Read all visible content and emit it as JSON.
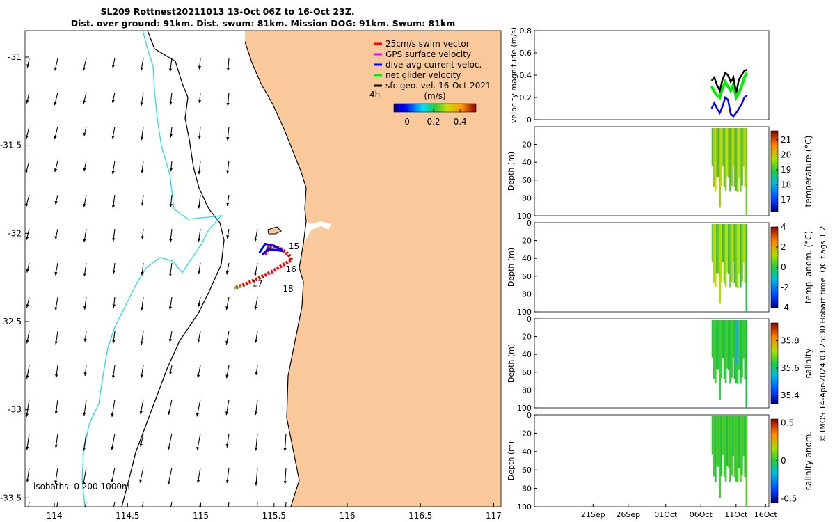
{
  "title": {
    "line1": "SL209 Rottnest20211013 13-Oct 06Z to 16-Oct 23Z.",
    "line2": "Dist. over ground: 91km. Dist. swum: 81km. Mission DOG: 91km. Swum: 81km"
  },
  "colors": {
    "land": "#f9c89b",
    "isobath_shallow": "#000000",
    "isobath_deep": "#22dddd",
    "swim_vector": "#ff0000",
    "gps_surface_velocity": "#ff00ff",
    "dive_avg_current": "#0000ff",
    "net_glider_velocity": "#00ee00",
    "sfc_geo_vel": "#000000"
  },
  "map": {
    "xticks": [
      "114",
      "114.5",
      "115",
      "115.5",
      "116",
      "116.5",
      "117"
    ],
    "yticks": [
      "-31",
      "-31.5",
      "-32",
      "-32.5",
      "-33",
      "-33.5"
    ],
    "xlim": [
      113.8,
      117.05
    ],
    "ylim": [
      -33.55,
      -30.85
    ],
    "isobath_label": "isobaths: 0   200  1000m",
    "vector_timestamp": "4h",
    "day_labels": [
      {
        "text": "15",
        "lon": 115.6,
        "lat": -32.09
      },
      {
        "text": "16",
        "lon": 115.58,
        "lat": -32.22
      },
      {
        "text": "17",
        "lon": 115.35,
        "lat": -32.3
      },
      {
        "text": "18",
        "lon": 115.56,
        "lat": -32.33
      }
    ],
    "legend": [
      {
        "label": "25cm/s swim vector",
        "color_key": "swim_vector"
      },
      {
        "label": "GPS surface velocity",
        "color_key": "gps_surface_velocity"
      },
      {
        "label": "dive-avg current veloc.",
        "color_key": "dive_avg_current"
      },
      {
        "label": "net glider velocity",
        "color_key": "net_glider_velocity"
      },
      {
        "label": "sfc geo. vel. 16-Oct-2021",
        "color_key": "sfc_geo_vel"
      }
    ],
    "colorbar": {
      "label": "(m/s)",
      "ticks": [
        "0",
        "0.2",
        "0.4"
      ],
      "range": [
        -0.1,
        0.52
      ]
    }
  },
  "chart_data": [
    {
      "type": "line",
      "panel": "velocity",
      "ylabel": "velocity magnitude (m/s)",
      "ylim": [
        0,
        0.8
      ],
      "yticks": [
        "0",
        "0.2",
        "0.4",
        "0.6",
        "0.8"
      ],
      "x_days": [
        13.25,
        13.5,
        13.75,
        14.0,
        14.25,
        14.5,
        14.75,
        15.0,
        15.25,
        15.5,
        15.75,
        16.0,
        16.25,
        16.5
      ],
      "series": [
        {
          "color_key": "sfc_geo_vel",
          "values": [
            0.35,
            0.38,
            0.31,
            0.26,
            0.36,
            0.42,
            0.4,
            0.34,
            0.38,
            0.24,
            0.36,
            0.4,
            0.44,
            0.45
          ]
        },
        {
          "color_key": "dive_avg_current",
          "values": [
            0.1,
            0.15,
            0.1,
            0.06,
            0.12,
            0.2,
            0.18,
            0.05,
            0.03,
            0.06,
            0.1,
            0.14,
            0.2,
            0.22
          ]
        },
        {
          "color_key": "net_glider_velocity",
          "values": [
            0.3,
            0.25,
            0.22,
            0.2,
            0.28,
            0.34,
            0.3,
            0.26,
            0.32,
            0.2,
            0.24,
            0.3,
            0.38,
            0.42
          ]
        }
      ]
    },
    {
      "type": "heatmap",
      "panel": "temperature",
      "ylabel": "Depth (m)",
      "cbar_label": "temperature (°C)",
      "cbar_ticks": [
        "17",
        "18",
        "19",
        "20",
        "21"
      ],
      "cbar_range": [
        16.2,
        21.6
      ],
      "depth_ticks": [
        "20",
        "40",
        "60",
        "80",
        "100"
      ]
    },
    {
      "type": "heatmap",
      "panel": "temp_anomaly",
      "ylabel": "Depth (m)",
      "cbar_label": "temp. anom. (°C)",
      "cbar_ticks": [
        "-4",
        "-2",
        "0",
        "2",
        "4"
      ],
      "cbar_range": [
        -4,
        4
      ],
      "depth_ticks": [
        "0",
        "20",
        "40",
        "60",
        "80",
        "100"
      ]
    },
    {
      "type": "heatmap",
      "panel": "salinity",
      "ylabel": "Depth (m)",
      "cbar_label": "salinity",
      "cbar_ticks": [
        "35.4",
        "35.6",
        "35.8"
      ],
      "cbar_range": [
        35.34,
        35.93
      ],
      "depth_ticks": [
        "0",
        "20",
        "40",
        "60",
        "80",
        "100"
      ]
    },
    {
      "type": "heatmap",
      "panel": "salinity_anomaly",
      "ylabel": "Depth (m)",
      "cbar_label": "salinity anom.",
      "cbar_ticks": [
        "-0.5",
        "0",
        "0.5"
      ],
      "cbar_range": [
        -0.55,
        0.55
      ],
      "depth_ticks": [
        "0",
        "20",
        "40",
        "60",
        "80",
        "100"
      ],
      "xticks": [
        "21Sep",
        "26Sep",
        "01Oct",
        "06Oct",
        "11Oct",
        "16Oct"
      ]
    }
  ],
  "footer": "© IMOS 14-Apr-2024 03:25:30 Hobart time. QC flags 1  2"
}
